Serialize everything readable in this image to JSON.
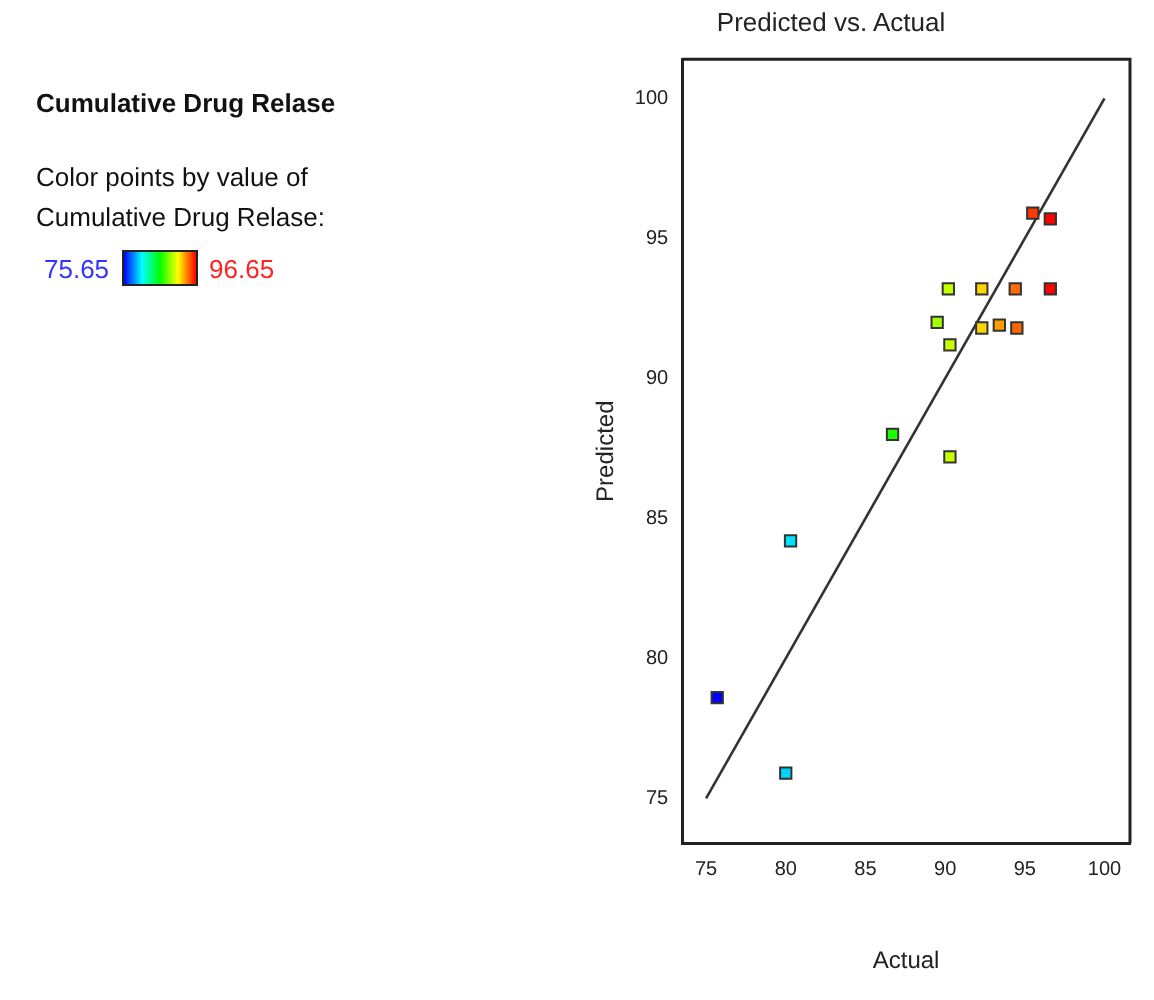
{
  "chart_data": {
    "type": "scatter",
    "title": "Predicted vs. Actual",
    "xlabel": "Actual",
    "ylabel": "Predicted",
    "annotations": [
      "Cumulative Drug Relase",
      "75.65",
      "96.65"
    ],
    "clabel": "Color points by value of Cumulative Drug Relase:",
    "xlim": [
      73.5,
      101.6
    ],
    "ylim": [
      73.4,
      101.4
    ],
    "xticks": [
      75,
      80,
      85,
      90,
      95,
      100
    ],
    "yticks": [
      75,
      80,
      85,
      90,
      95,
      100
    ],
    "grid": false,
    "legend": false,
    "series": [
      {
        "type": "scatter",
        "marker": "square",
        "x": [
          75.7,
          80.0,
          80.3,
          86.7,
          90.3,
          89.5,
          90.3,
          90.2,
          92.3,
          92.3,
          93.4,
          94.5,
          94.4,
          95.5,
          96.6,
          96.6
        ],
        "values": [
          78.6,
          75.9,
          84.2,
          88.0,
          87.2,
          92.0,
          91.2,
          93.2,
          93.2,
          91.8,
          91.9,
          91.8,
          93.2,
          95.9,
          95.7,
          93.2
        ],
        "colors": [
          "#0000ff",
          "#00d4ff",
          "#00e2ff",
          "#1bff00",
          "#c9ff00",
          "#a3ff00",
          "#c9ff00",
          "#c5ff00",
          "#ffd300",
          "#ffd300",
          "#ff9e00",
          "#ff6800",
          "#ff6d00",
          "#ff3800",
          "#ff0200",
          "#ff0200"
        ]
      },
      {
        "type": "line",
        "marker": "none",
        "line_style": "solid",
        "color": "#333333",
        "x": [
          75,
          100
        ],
        "values": [
          75,
          100
        ]
      }
    ]
  }
}
